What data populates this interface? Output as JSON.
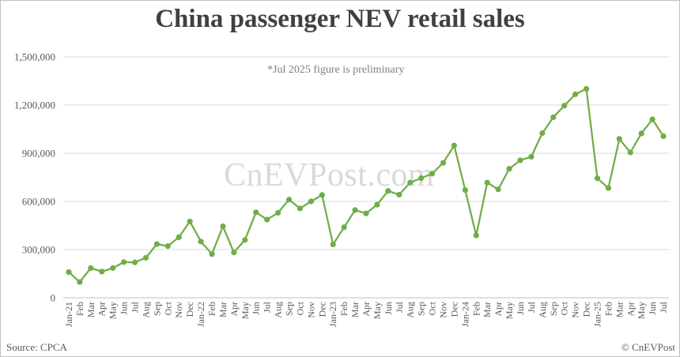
{
  "chart_data": {
    "type": "line",
    "title": "China passenger NEV retail sales",
    "annotation": "*Jul 2025 figure is preliminary",
    "watermark": "CnEVPost.com",
    "source": "Source: CPCA",
    "copyright": "© CnEVPost",
    "ylim": [
      0,
      1500000
    ],
    "yticks": [
      0,
      300000,
      600000,
      900000,
      1200000,
      1500000
    ],
    "ytick_labels": [
      "0",
      "300,000",
      "600,000",
      "900,000",
      "1,200,000",
      "1,500,000"
    ],
    "grid": true,
    "line_color": "#70ad47",
    "categories": [
      "Jan-21",
      "Feb",
      "Mar",
      "Apr",
      "May",
      "Jun",
      "Jul",
      "Aug",
      "Sep",
      "Oct",
      "Nov",
      "Dec",
      "Jan-22",
      "Feb",
      "Mar",
      "Apr",
      "May",
      "Jun",
      "Jul",
      "Aug",
      "Sep",
      "Oct",
      "Nov",
      "Dec",
      "Jan-23",
      "Feb",
      "Mar",
      "Apr",
      "May",
      "Jun",
      "Jul",
      "Aug",
      "Sep",
      "Oct",
      "Nov",
      "Dec",
      "Jan-24",
      "Feb",
      "Mar",
      "Apr",
      "May",
      "Jun",
      "Jul",
      "Aug",
      "Sep",
      "Oct",
      "Nov",
      "Dec",
      "Jan-25",
      "Feb",
      "Mar",
      "Apr",
      "May",
      "Jun",
      "Jul"
    ],
    "values": [
      160000,
      98000,
      185000,
      163000,
      185000,
      222000,
      220000,
      249000,
      334000,
      322000,
      377000,
      475000,
      350000,
      272000,
      445000,
      282000,
      360000,
      532000,
      487000,
      529000,
      611000,
      556000,
      600000,
      640000,
      332000,
      439000,
      546000,
      525000,
      580000,
      665000,
      642000,
      717000,
      745000,
      773000,
      840000,
      948000,
      671000,
      388000,
      717000,
      675000,
      803000,
      856000,
      878000,
      1025000,
      1124000,
      1196000,
      1267000,
      1301000,
      744000,
      683000,
      989000,
      905000,
      1023000,
      1111000,
      1006000
    ]
  }
}
